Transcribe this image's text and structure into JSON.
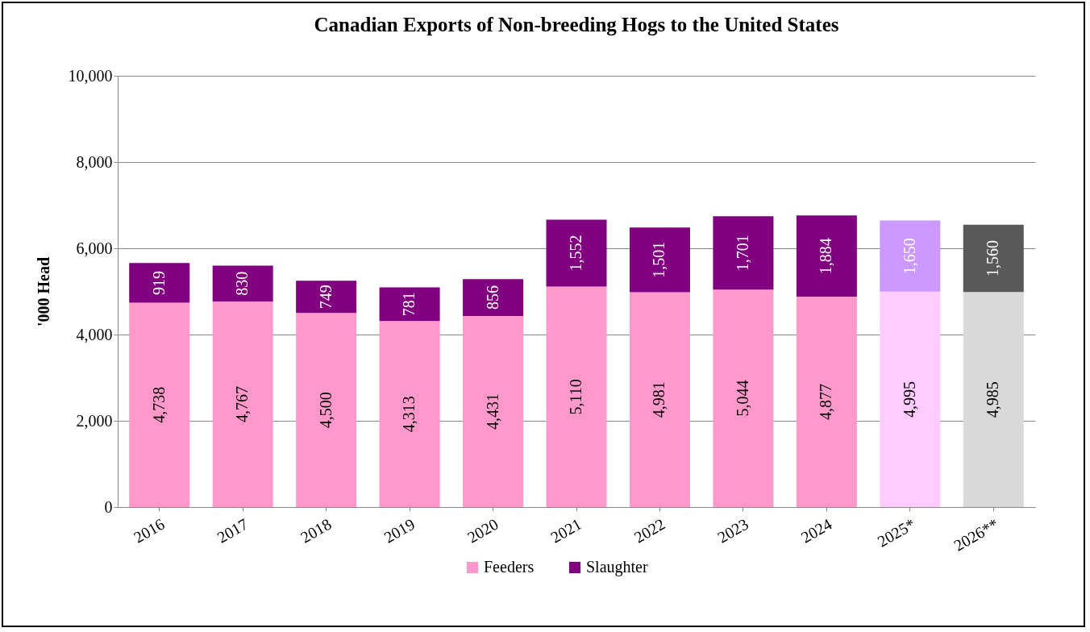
{
  "chart_data": {
    "type": "bar",
    "title": "Canadian Exports of Non-breeding Hogs to the United States",
    "ylabel": "'000 Head",
    "categories": [
      "2016",
      "2017",
      "2018",
      "2019",
      "2020",
      "2021",
      "2022",
      "2023",
      "2024",
      "2025*",
      "2026**"
    ],
    "stacked": true,
    "grid": "y",
    "legend": "bottom",
    "ylim": [
      0,
      10000
    ],
    "yticks": [
      {
        "value": 0,
        "label": "0"
      },
      {
        "value": 2000,
        "label": "2,000"
      },
      {
        "value": 4000,
        "label": "4,000"
      },
      {
        "value": 6000,
        "label": "6,000"
      },
      {
        "value": 8000,
        "label": "8,000"
      },
      {
        "value": 10000,
        "label": "10,000"
      }
    ],
    "series": [
      {
        "name": "Feeders",
        "color": "#ff99cc",
        "colors": [
          "#ff99cc",
          "#ff99cc",
          "#ff99cc",
          "#ff99cc",
          "#ff99cc",
          "#ff99cc",
          "#ff99cc",
          "#ff99cc",
          "#ff99cc",
          "#ffccff",
          "#d9d9d9"
        ],
        "values": [
          4738,
          4767,
          4500,
          4313,
          4431,
          5110,
          4981,
          5044,
          4877,
          4995,
          4985
        ],
        "value_labels": [
          "4,738",
          "4,767",
          "4,500",
          "4,313",
          "4,431",
          "5,110",
          "4,981",
          "5,044",
          "4,877",
          "4,995",
          "4,985"
        ]
      },
      {
        "name": "Slaughter",
        "color": "#800080",
        "colors": [
          "#800080",
          "#800080",
          "#800080",
          "#800080",
          "#800080",
          "#800080",
          "#800080",
          "#800080",
          "#800080",
          "#cc99ff",
          "#595959"
        ],
        "values": [
          919,
          830,
          749,
          781,
          856,
          1552,
          1501,
          1701,
          1884,
          1650,
          1560
        ],
        "value_labels": [
          "919",
          "830",
          "749",
          "781",
          "856",
          "1,552",
          "1,501",
          "1,701",
          "1,884",
          "1,650",
          "1,560"
        ]
      }
    ]
  }
}
